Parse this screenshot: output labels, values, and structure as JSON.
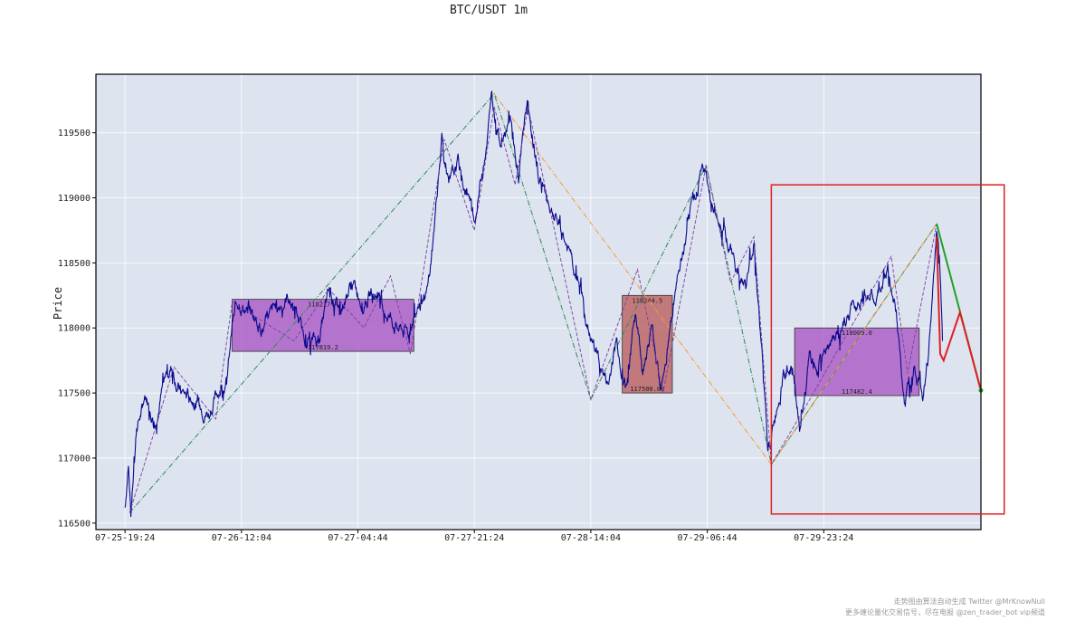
{
  "chart_data": {
    "type": "line",
    "title": "BTC/USDT 1m",
    "ylabel": "Price",
    "xlabel": "",
    "grid": true,
    "ylim": [
      116450,
      119950
    ],
    "xlim": [
      -0.25,
      7.35
    ],
    "x_ticks": [
      "07-25-19:24",
      "07-26-12:04",
      "07-27-04:44",
      "07-27-21:24",
      "07-28-14:04",
      "07-29-06:44",
      "07-29-23:24"
    ],
    "y_ticks": [
      116500,
      117000,
      117500,
      118000,
      118500,
      119000,
      119500
    ],
    "colors": {
      "plot_bg": "#dde3ef",
      "price": "#0a0a8c",
      "zone_purple": "#a64dc0",
      "zone_brown": "#b85555",
      "bi_zigzag": "#7b3fa0",
      "segment_green": "#2e8b57",
      "segment_orange": "#f39c34",
      "forecast_red": "#e02020",
      "forecast_green": "#22a02a",
      "highlight_box": "#e02020"
    },
    "price_anchors": [
      [
        0.0,
        116620
      ],
      [
        0.03,
        117000
      ],
      [
        0.05,
        116600
      ],
      [
        0.1,
        117250
      ],
      [
        0.18,
        117450
      ],
      [
        0.26,
        117300
      ],
      [
        0.34,
        117600
      ],
      [
        0.4,
        117700
      ],
      [
        0.48,
        117500
      ],
      [
        0.58,
        117450
      ],
      [
        0.72,
        117350
      ],
      [
        0.82,
        117550
      ],
      [
        0.88,
        117600
      ],
      [
        0.92,
        118050
      ],
      [
        0.98,
        118200
      ],
      [
        1.1,
        118100
      ],
      [
        1.2,
        118000
      ],
      [
        1.3,
        118150
      ],
      [
        1.4,
        118250
      ],
      [
        1.52,
        117950
      ],
      [
        1.65,
        117900
      ],
      [
        1.75,
        118250
      ],
      [
        1.85,
        118150
      ],
      [
        1.95,
        118350
      ],
      [
        2.05,
        118200
      ],
      [
        2.14,
        118300
      ],
      [
        2.24,
        118150
      ],
      [
        2.34,
        118000
      ],
      [
        2.44,
        117950
      ],
      [
        2.52,
        118250
      ],
      [
        2.6,
        118300
      ],
      [
        2.65,
        118700
      ],
      [
        2.72,
        119500
      ],
      [
        2.78,
        119050
      ],
      [
        2.86,
        119250
      ],
      [
        2.95,
        119000
      ],
      [
        3.0,
        118800
      ],
      [
        3.08,
        119300
      ],
      [
        3.15,
        119750
      ],
      [
        3.22,
        119450
      ],
      [
        3.3,
        119650
      ],
      [
        3.38,
        119150
      ],
      [
        3.45,
        119700
      ],
      [
        3.55,
        119200
      ],
      [
        3.62,
        119000
      ],
      [
        3.7,
        118850
      ],
      [
        3.8,
        118600
      ],
      [
        3.9,
        118350
      ],
      [
        3.97,
        118000
      ],
      [
        4.05,
        117800
      ],
      [
        4.15,
        117550
      ],
      [
        4.22,
        117900
      ],
      [
        4.3,
        117550
      ],
      [
        4.38,
        118100
      ],
      [
        4.45,
        117700
      ],
      [
        4.52,
        118000
      ],
      [
        4.6,
        117600
      ],
      [
        4.7,
        118100
      ],
      [
        4.8,
        118600
      ],
      [
        4.88,
        118950
      ],
      [
        4.96,
        119250
      ],
      [
        5.05,
        118900
      ],
      [
        5.15,
        118750
      ],
      [
        5.25,
        118450
      ],
      [
        5.33,
        118300
      ],
      [
        5.4,
        118700
      ],
      [
        5.47,
        117800
      ],
      [
        5.52,
        117000
      ],
      [
        5.58,
        117300
      ],
      [
        5.65,
        117650
      ],
      [
        5.72,
        117700
      ],
      [
        5.8,
        117200
      ],
      [
        5.88,
        117750
      ],
      [
        5.95,
        117650
      ],
      [
        6.05,
        117900
      ],
      [
        6.15,
        117950
      ],
      [
        6.25,
        118150
      ],
      [
        6.35,
        118300
      ],
      [
        6.45,
        118200
      ],
      [
        6.55,
        118450
      ],
      [
        6.62,
        118100
      ],
      [
        6.7,
        117400
      ],
      [
        6.78,
        117800
      ],
      [
        6.85,
        117500
      ],
      [
        6.9,
        117800
      ],
      [
        6.94,
        118300
      ],
      [
        6.97,
        118750
      ],
      [
        7.0,
        118400
      ],
      [
        7.02,
        117900
      ]
    ],
    "price_noise": 45,
    "zones": [
      {
        "x0": 0.92,
        "x1": 2.48,
        "y0": 117820,
        "y1": 118220,
        "top_label": "118217.4",
        "bottom_label": "117819.2",
        "color": "purple"
      },
      {
        "x0": 4.27,
        "x1": 4.7,
        "y0": 117500,
        "y1": 118250,
        "top_label": "118244.5",
        "bottom_label": "117500.09",
        "color": "brown"
      },
      {
        "x0": 5.75,
        "x1": 6.82,
        "y0": 117480,
        "y1": 118000,
        "top_label": "118000.0",
        "bottom_label": "117482.4",
        "color": "purple"
      }
    ],
    "bi_zigzag": [
      [
        0.04,
        116580
      ],
      [
        0.42,
        117700
      ],
      [
        0.78,
        117300
      ],
      [
        0.92,
        118200
      ],
      [
        1.45,
        117900
      ],
      [
        1.75,
        118300
      ],
      [
        2.05,
        118000
      ],
      [
        2.28,
        118400
      ],
      [
        2.45,
        117800
      ],
      [
        2.74,
        119450
      ],
      [
        3.0,
        118750
      ],
      [
        3.17,
        119700
      ],
      [
        3.35,
        119100
      ],
      [
        3.46,
        119700
      ],
      [
        4.0,
        117450
      ],
      [
        4.4,
        118450
      ],
      [
        4.62,
        117500
      ],
      [
        4.99,
        119250
      ],
      [
        5.2,
        118350
      ],
      [
        5.4,
        118700
      ],
      [
        5.55,
        116950
      ],
      [
        5.88,
        117450
      ],
      [
        6.58,
        118550
      ],
      [
        6.72,
        117650
      ],
      [
        6.97,
        118800
      ]
    ],
    "segment_green": [
      [
        0.04,
        116580
      ],
      [
        3.17,
        119800
      ],
      [
        4.0,
        117450
      ],
      [
        4.99,
        119250
      ],
      [
        5.55,
        116950
      ],
      [
        6.97,
        118800
      ]
    ],
    "segment_orange": [
      [
        3.17,
        119800
      ],
      [
        5.55,
        116950
      ],
      [
        6.97,
        118800
      ],
      [
        7.35,
        117500
      ]
    ],
    "forecast_red": [
      [
        6.97,
        118700
      ],
      [
        7.0,
        117800
      ],
      [
        7.03,
        117750
      ],
      [
        7.17,
        118120
      ],
      [
        7.35,
        117520
      ]
    ],
    "forecast_green": [
      [
        6.97,
        118800
      ],
      [
        7.35,
        117520
      ]
    ],
    "highlight_box": {
      "x0": 5.55,
      "x1": 7.55,
      "y0": 116570,
      "y1": 119100
    }
  },
  "watermark": {
    "line1": "走势图由算法自动生成  Twitter @MrKnowNull",
    "line2": "更多缠论量化交易信号，尽在电报 @zen_trader_bot vip频道"
  }
}
